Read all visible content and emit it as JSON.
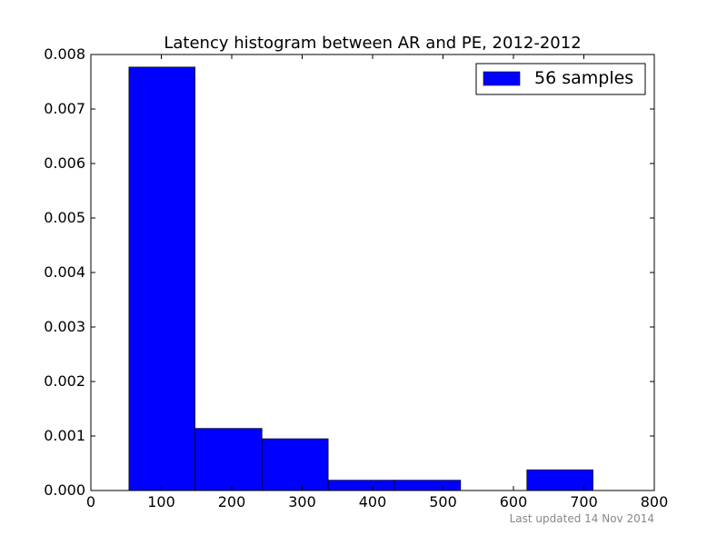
{
  "chart_data": {
    "type": "histogram",
    "title": "Latency histogram between AR and PE, 2012-2012",
    "bins": [
      54,
      148,
      243,
      337,
      431,
      525,
      619,
      713
    ],
    "series": [
      {
        "name": "56 samples",
        "color": "#0000ff",
        "values": [
          0.00777,
          0.00114,
          0.00095,
          0.00019,
          0.00019,
          0,
          0.00038
        ]
      }
    ],
    "xlim": [
      0,
      800
    ],
    "xticks": [
      0,
      100,
      200,
      300,
      400,
      500,
      600,
      700,
      800
    ],
    "ylim": [
      0,
      0.008
    ],
    "yticks": [
      {
        "value": 0,
        "label": "0.000"
      },
      0.001,
      0.002,
      0.003,
      0.004,
      0.005,
      0.006,
      0.007,
      0.008
    ],
    "grid": false,
    "legend": "upper right",
    "footnote": "Last updated 14 Nov 2014"
  }
}
